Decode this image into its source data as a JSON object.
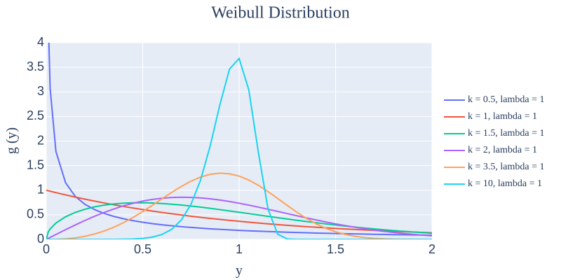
{
  "chart_data": {
    "type": "line",
    "title": "Weibull Distribution",
    "x_label": "y",
    "y_label": "g (y)",
    "x": [
      0,
      0.01,
      0.02,
      0.05,
      0.1,
      0.15,
      0.2,
      0.25,
      0.3,
      0.35,
      0.4,
      0.45,
      0.5,
      0.55,
      0.6,
      0.65,
      0.7,
      0.75,
      0.8,
      0.85,
      0.9,
      0.95,
      1,
      1.05,
      1.1,
      1.15,
      1.2,
      1.25,
      1.3,
      1.35,
      1.4,
      1.45,
      1.5,
      1.55,
      1.6,
      1.65,
      1.7,
      1.75,
      1.8,
      1.85,
      1.9,
      1.95,
      2
    ],
    "series": [
      {
        "name": "k = 0.5, lambda = 1",
        "color": "#636efa",
        "values": [
          null,
          4.52,
          3.07,
          1.788,
          1.152,
          0.876,
          0.715,
          0.607,
          0.528,
          0.468,
          0.42,
          0.381,
          0.349,
          0.321,
          0.298,
          0.277,
          0.259,
          0.243,
          0.229,
          0.216,
          0.204,
          0.194,
          0.184,
          0.175,
          0.167,
          0.16,
          0.153,
          0.146,
          0.14,
          0.135,
          0.129,
          0.125,
          0.12,
          0.116,
          0.112,
          0.108,
          0.104,
          0.101,
          0.097,
          0.094,
          0.091,
          0.089,
          0.086
        ]
      },
      {
        "name": "k = 1, lambda = 1",
        "color": "#EF553B",
        "values": [
          1,
          0.99,
          0.98,
          0.951,
          0.905,
          0.861,
          0.819,
          0.779,
          0.741,
          0.705,
          0.67,
          0.638,
          0.607,
          0.577,
          0.549,
          0.522,
          0.497,
          0.472,
          0.449,
          0.427,
          0.407,
          0.387,
          0.368,
          0.35,
          0.333,
          0.317,
          0.301,
          0.287,
          0.273,
          0.259,
          0.247,
          0.235,
          0.223,
          0.212,
          0.202,
          0.192,
          0.183,
          0.174,
          0.165,
          0.157,
          0.15,
          0.142,
          0.135
        ]
      },
      {
        "name": "k = 1.5, lambda = 1",
        "color": "#00cc96",
        "values": [
          0,
          0.15,
          0.212,
          0.332,
          0.46,
          0.548,
          0.613,
          0.662,
          0.697,
          0.721,
          0.737,
          0.744,
          0.745,
          0.74,
          0.73,
          0.716,
          0.699,
          0.678,
          0.656,
          0.632,
          0.606,
          0.579,
          0.552,
          0.524,
          0.496,
          0.469,
          0.441,
          0.415,
          0.388,
          0.363,
          0.339,
          0.315,
          0.293,
          0.271,
          0.251,
          0.231,
          0.213,
          0.196,
          0.18,
          0.165,
          0.151,
          0.138,
          0.125
        ]
      },
      {
        "name": "k = 2, lambda = 1",
        "color": "#ab63fa",
        "values": [
          0,
          0.02,
          0.04,
          0.1,
          0.198,
          0.293,
          0.384,
          0.47,
          0.548,
          0.619,
          0.682,
          0.735,
          0.779,
          0.813,
          0.837,
          0.852,
          0.858,
          0.855,
          0.844,
          0.825,
          0.801,
          0.771,
          0.736,
          0.697,
          0.656,
          0.613,
          0.569,
          0.524,
          0.48,
          0.436,
          0.395,
          0.354,
          0.316,
          0.281,
          0.247,
          0.217,
          0.189,
          0.164,
          0.141,
          0.121,
          0.103,
          0.087,
          0.073
        ]
      },
      {
        "name": "k = 3.5, lambda = 1",
        "color": "#FFA15A",
        "values": [
          0,
          0,
          0,
          0.002,
          0.011,
          0.031,
          0.062,
          0.109,
          0.17,
          0.247,
          0.34,
          0.447,
          0.566,
          0.694,
          0.826,
          0.955,
          1.077,
          1.183,
          1.267,
          1.324,
          1.347,
          1.335,
          1.288,
          1.208,
          1.1,
          0.971,
          0.831,
          0.689,
          0.551,
          0.425,
          0.316,
          0.225,
          0.155,
          0.101,
          0.064,
          0.038,
          0.022,
          0.012,
          0.006,
          0.003,
          0.001,
          0,
          0
        ]
      },
      {
        "name": "k = 10, lambda = 1",
        "color": "#19d3f3",
        "values": [
          0,
          0,
          0,
          0,
          0,
          0,
          0,
          0,
          0,
          0,
          0.003,
          0.008,
          0.02,
          0.046,
          0.1,
          0.204,
          0.392,
          0.71,
          1.205,
          1.902,
          2.734,
          3.463,
          3.679,
          3.044,
          1.764,
          0.616,
          0.106,
          0.007,
          0,
          0,
          0,
          0,
          0,
          0,
          0,
          0,
          0,
          0,
          0,
          0,
          0,
          0,
          0
        ]
      }
    ],
    "xlim": [
      0,
      2
    ],
    "xticks": [
      0,
      0.5,
      1,
      1.5,
      2
    ],
    "ylim": [
      0,
      4
    ],
    "yticks": [
      0,
      0.5,
      1,
      1.5,
      2,
      2.5,
      3,
      3.5,
      4
    ],
    "grid": true,
    "legend": "right"
  }
}
